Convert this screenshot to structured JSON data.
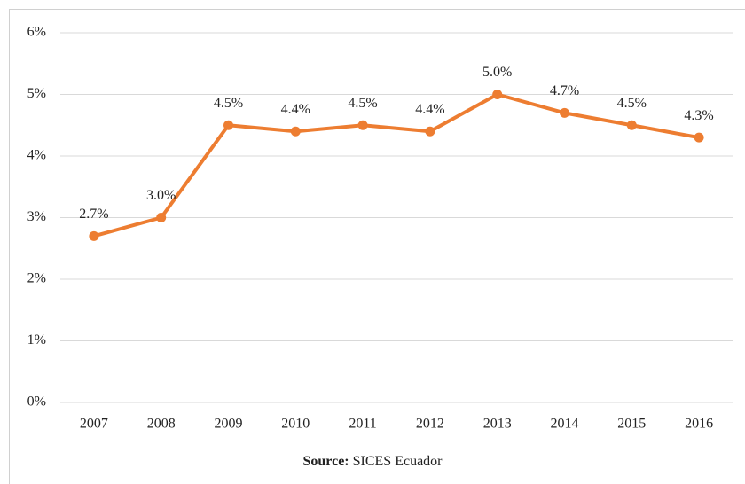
{
  "chart_data": {
    "type": "line",
    "categories": [
      "2007",
      "2008",
      "2009",
      "2010",
      "2011",
      "2012",
      "2013",
      "2014",
      "2015",
      "2016"
    ],
    "series": [
      {
        "color": "#ed7d31",
        "values": [
          2.7,
          3.0,
          4.5,
          4.4,
          4.5,
          4.4,
          5.0,
          4.7,
          4.5,
          4.3
        ],
        "value_labels": [
          "2.7%",
          "3.0%",
          "4.5%",
          "4.4%",
          "4.5%",
          "4.4%",
          "5.0%",
          "4.7%",
          "4.5%",
          "4.3%"
        ]
      }
    ],
    "ylim": [
      0,
      6
    ],
    "yticks": [
      {
        "value": 0,
        "label": "0%"
      },
      {
        "value": 1,
        "label": "1%"
      },
      {
        "value": 2,
        "label": "2%"
      },
      {
        "value": 3,
        "label": "3%"
      },
      {
        "value": 4,
        "label": "4%"
      },
      {
        "value": 5,
        "label": "5%"
      },
      {
        "value": 6,
        "label": "6%"
      }
    ],
    "grid": true,
    "source_label": "Source:",
    "source": "SICES Ecuador"
  }
}
